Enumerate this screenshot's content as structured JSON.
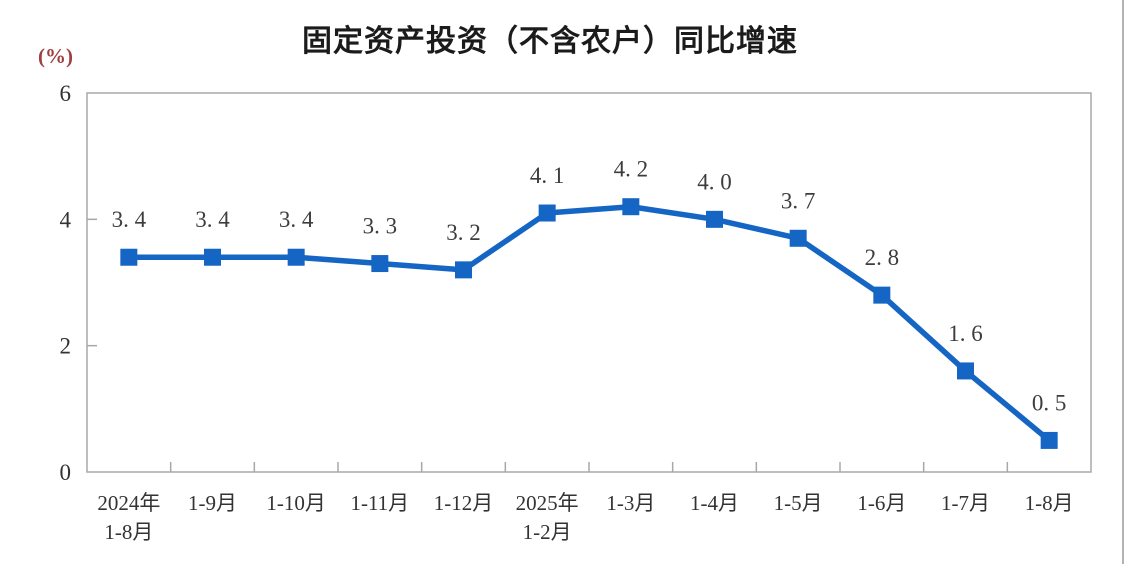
{
  "chart": {
    "title": "固定资产投资（不含农户）同比增速",
    "unit_label": "(%)"
  },
  "chart_data": {
    "type": "line",
    "title": "固定资产投资（不含农户）同比增速",
    "ylabel": "(%)",
    "xlabel": "",
    "categories": [
      [
        "2024年",
        "1-8月"
      ],
      [
        "1-9月"
      ],
      [
        "1-10月"
      ],
      [
        "1-11月"
      ],
      [
        "1-12月"
      ],
      [
        "2025年",
        "1-2月"
      ],
      [
        "1-3月"
      ],
      [
        "1-4月"
      ],
      [
        "1-5月"
      ],
      [
        "1-6月"
      ],
      [
        "1-7月"
      ],
      [
        "1-8月"
      ]
    ],
    "values": [
      3.4,
      3.4,
      3.4,
      3.3,
      3.2,
      4.1,
      4.2,
      4.0,
      3.7,
      2.8,
      1.6,
      0.5
    ],
    "ylim": [
      0,
      6
    ],
    "yticks": [
      0,
      2,
      4,
      6
    ],
    "grid": false,
    "legend_position": "none",
    "line_color": "#1566c4",
    "marker": "square",
    "axis_color": "#a8a8a8",
    "tick_label_color": "#333333",
    "data_label_color": "#3d3d3d"
  }
}
